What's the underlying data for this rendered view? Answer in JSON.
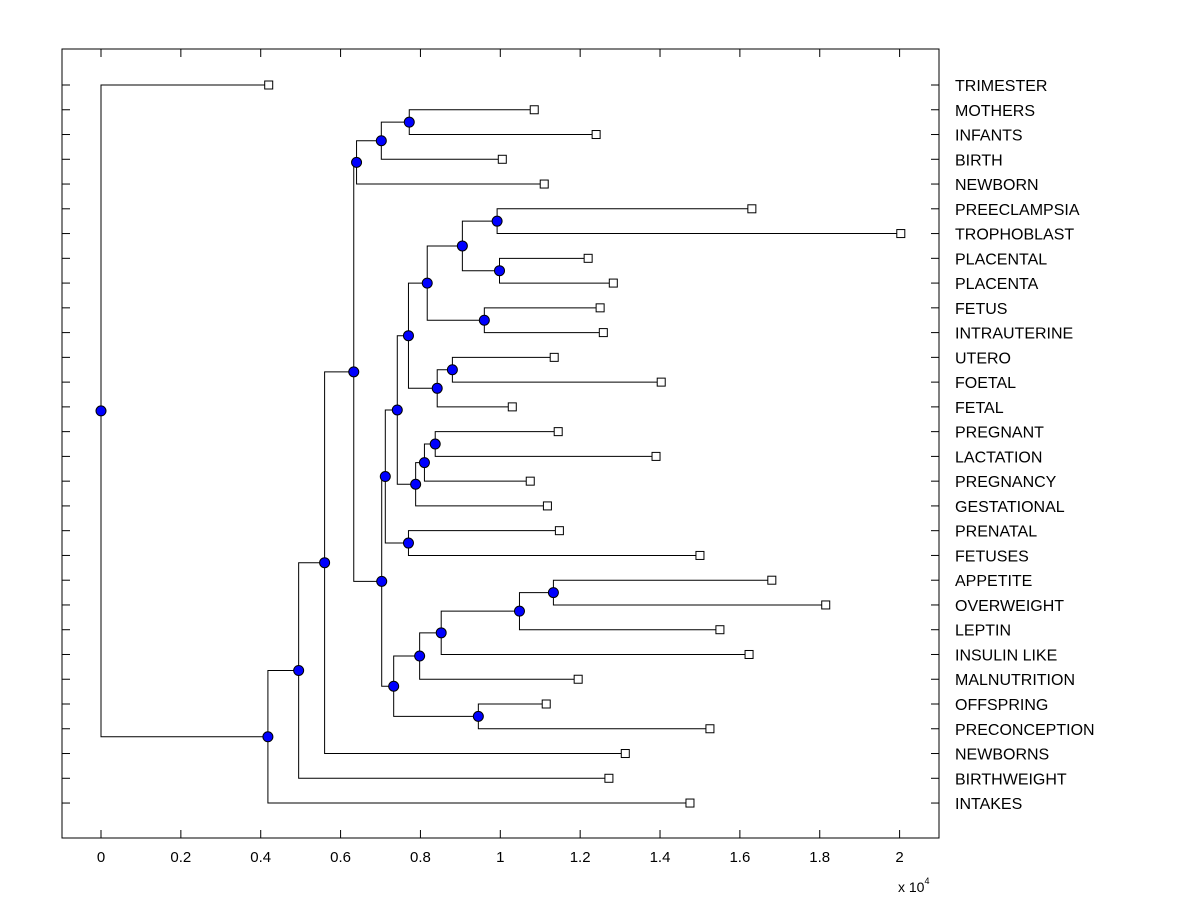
{
  "chart_data": {
    "type": "dendrogram",
    "orientation": "horizontal",
    "x_ticks": [
      0,
      0.2,
      0.4,
      0.6,
      0.8,
      1,
      1.2,
      1.4,
      1.6,
      1.8,
      2
    ],
    "xlim": [
      -0.095,
      2.1
    ],
    "x_multiplier_base": "x 10",
    "x_multiplier_exponent": "4",
    "colors": {
      "node": "#0000ff",
      "line": "#000000",
      "leaf": "#ffffff"
    },
    "leaves": [
      {
        "label": "TRIMESTER",
        "x": 0.42
      },
      {
        "label": "MOTHERS",
        "x": 1.085
      },
      {
        "label": "INFANTS",
        "x": 1.24
      },
      {
        "label": "BIRTH",
        "x": 1.005
      },
      {
        "label": "NEWBORN",
        "x": 1.11
      },
      {
        "label": "PREECLAMPSIA",
        "x": 1.63
      },
      {
        "label": "TROPHOBLAST",
        "x": 2.003
      },
      {
        "label": "PLACENTAL",
        "x": 1.22
      },
      {
        "label": "PLACENTA",
        "x": 1.283
      },
      {
        "label": "FETUS",
        "x": 1.25
      },
      {
        "label": "INTRAUTERINE",
        "x": 1.258
      },
      {
        "label": "UTERO",
        "x": 1.135
      },
      {
        "label": "FOETAL",
        "x": 1.403
      },
      {
        "label": "FETAL",
        "x": 1.03
      },
      {
        "label": "PREGNANT",
        "x": 1.145
      },
      {
        "label": "LACTATION",
        "x": 1.39
      },
      {
        "label": "PREGNANCY",
        "x": 1.075
      },
      {
        "label": "GESTATIONAL",
        "x": 1.118
      },
      {
        "label": "PRENATAL",
        "x": 1.148
      },
      {
        "label": "FETUSES",
        "x": 1.5
      },
      {
        "label": "APPETITE",
        "x": 1.68
      },
      {
        "label": "OVERWEIGHT",
        "x": 1.815
      },
      {
        "label": "LEPTIN",
        "x": 1.55
      },
      {
        "label": "INSULIN LIKE",
        "x": 1.623
      },
      {
        "label": "MALNUTRITION",
        "x": 1.195
      },
      {
        "label": "OFFSPRING",
        "x": 1.115
      },
      {
        "label": "PRECONCEPTION",
        "x": 1.525
      },
      {
        "label": "NEWBORNS",
        "x": 1.313
      },
      {
        "label": "BIRTHWEIGHT",
        "x": 1.272
      },
      {
        "label": "INTAKES",
        "x": 1.475
      }
    ],
    "merges": [
      {
        "a": "MOTHERS",
        "b": "INFANTS",
        "x": 0.772,
        "id": "n1"
      },
      {
        "a": "n1",
        "b": "BIRTH",
        "x": 0.702,
        "id": "n2"
      },
      {
        "a": "n2",
        "b": "NEWBORN",
        "x": 0.64,
        "id": "n3"
      },
      {
        "a": "PREECLAMPSIA",
        "b": "TROPHOBLAST",
        "x": 0.992,
        "id": "n4"
      },
      {
        "a": "PLACENTAL",
        "b": "PLACENTA",
        "x": 0.998,
        "id": "n5"
      },
      {
        "a": "n4",
        "b": "n5",
        "x": 0.905,
        "id": "n6"
      },
      {
        "a": "FETUS",
        "b": "INTRAUTERINE",
        "x": 0.96,
        "id": "n7"
      },
      {
        "a": "n6",
        "b": "n7",
        "x": 0.817,
        "id": "n8"
      },
      {
        "a": "UTERO",
        "b": "FOETAL",
        "x": 0.88,
        "id": "n9"
      },
      {
        "a": "n9",
        "b": "FETAL",
        "x": 0.842,
        "id": "n10"
      },
      {
        "a": "n8",
        "b": "n10",
        "x": 0.77,
        "id": "n11"
      },
      {
        "a": "PREGNANT",
        "b": "LACTATION",
        "x": 0.837,
        "id": "n12"
      },
      {
        "a": "n12",
        "b": "PREGNANCY",
        "x": 0.81,
        "id": "n13"
      },
      {
        "a": "n13",
        "b": "GESTATIONAL",
        "x": 0.788,
        "id": "n14"
      },
      {
        "a": "n11",
        "b": "n14",
        "x": 0.742,
        "id": "n15"
      },
      {
        "a": "PRENATAL",
        "b": "FETUSES",
        "x": 0.77,
        "id": "n16"
      },
      {
        "a": "n15",
        "b": "n16",
        "x": 0.712,
        "id": "n17"
      },
      {
        "a": "APPETITE",
        "b": "OVERWEIGHT",
        "x": 1.133,
        "id": "n18"
      },
      {
        "a": "n18",
        "b": "LEPTIN",
        "x": 1.048,
        "id": "n19"
      },
      {
        "a": "n19",
        "b": "INSULIN LIKE",
        "x": 0.852,
        "id": "n20"
      },
      {
        "a": "n20",
        "b": "MALNUTRITION",
        "x": 0.798,
        "id": "n21"
      },
      {
        "a": "OFFSPRING",
        "b": "PRECONCEPTION",
        "x": 0.945,
        "id": "n22"
      },
      {
        "a": "n21",
        "b": "n22",
        "x": 0.733,
        "id": "n23"
      },
      {
        "a": "n17",
        "b": "n23",
        "x": 0.703,
        "id": "n24"
      },
      {
        "a": "n3",
        "b": "n24",
        "x": 0.633,
        "id": "n25"
      },
      {
        "a": "n25",
        "b": "NEWBORNS",
        "x": 0.56,
        "id": "n26"
      },
      {
        "a": "n26",
        "b": "BIRTHWEIGHT",
        "x": 0.495,
        "id": "n27"
      },
      {
        "a": "n27",
        "b": "INTAKES",
        "x": 0.418,
        "id": "n28"
      },
      {
        "a": "TRIMESTER",
        "b": "n28",
        "x": 0,
        "id": "n29"
      }
    ]
  }
}
